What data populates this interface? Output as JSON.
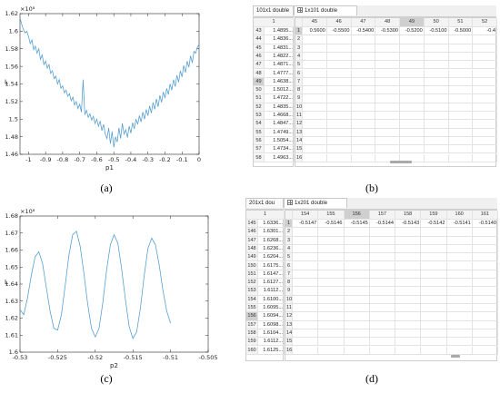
{
  "captions": {
    "a": "(a)",
    "b": "(b)",
    "c": "(c)",
    "d": "(d)"
  },
  "chart_data": [
    {
      "type": "line",
      "panel": "a",
      "xlabel": "p1",
      "ylabel": "L",
      "y_exponent": "×10⁸",
      "xlim": [
        -1.05,
        0
      ],
      "ylim": [
        1.46,
        1.62
      ],
      "xticks": [
        -1,
        -0.9,
        -0.8,
        -0.7,
        -0.6,
        -0.5,
        -0.4,
        -0.3,
        -0.2,
        -0.1,
        0
      ],
      "xtick_labels": [
        "-1",
        "-0.9",
        "-0.8",
        "-0.7",
        "-0.6",
        "-0.5",
        "-0.4",
        "-0.3",
        "-0.2",
        "-0.1",
        "0"
      ],
      "yticks": [
        1.46,
        1.48,
        1.5,
        1.52,
        1.54,
        1.56,
        1.58,
        1.6,
        1.62
      ],
      "ytick_labels": [
        "1.46",
        "1.48",
        "1.5",
        "1.52",
        "1.54",
        "1.56",
        "1.58",
        "1.6",
        "1.62"
      ],
      "grid": false,
      "color": "#5aa0cf",
      "series": [
        {
          "x": [
            -1.05,
            -1.04,
            -1.03,
            -1.02,
            -1.01,
            -1,
            -0.99,
            -0.98,
            -0.97,
            -0.96,
            -0.95,
            -0.94,
            -0.93,
            -0.92,
            -0.91,
            -0.9,
            -0.89,
            -0.88,
            -0.87,
            -0.86,
            -0.85,
            -0.84,
            -0.83,
            -0.82,
            -0.81,
            -0.8,
            -0.79,
            -0.78,
            -0.77,
            -0.76,
            -0.75,
            -0.74,
            -0.73,
            -0.72,
            -0.71,
            -0.7,
            -0.69,
            -0.68,
            -0.67,
            -0.66,
            -0.65,
            -0.64,
            -0.63,
            -0.62,
            -0.61,
            -0.6,
            -0.59,
            -0.58,
            -0.57,
            -0.56,
            -0.55,
            -0.54,
            -0.53,
            -0.52,
            -0.51,
            -0.5,
            -0.49,
            -0.48,
            -0.47,
            -0.46,
            -0.45,
            -0.44,
            -0.43,
            -0.42,
            -0.41,
            -0.4,
            -0.39,
            -0.38,
            -0.37,
            -0.36,
            -0.35,
            -0.34,
            -0.33,
            -0.32,
            -0.31,
            -0.3,
            -0.29,
            -0.28,
            -0.27,
            -0.26,
            -0.25,
            -0.24,
            -0.23,
            -0.22,
            -0.21,
            -0.2,
            -0.19,
            -0.18,
            -0.17,
            -0.16,
            -0.15,
            -0.14,
            -0.13,
            -0.12,
            -0.11,
            -0.1,
            -0.09,
            -0.08,
            -0.07,
            -0.06,
            -0.05,
            -0.04,
            -0.03,
            -0.02,
            -0.01,
            0
          ],
          "y": [
            1.615,
            1.608,
            1.602,
            1.598,
            1.6,
            1.594,
            1.586,
            1.59,
            1.579,
            1.583,
            1.575,
            1.58,
            1.568,
            1.573,
            1.562,
            1.566,
            1.558,
            1.562,
            1.552,
            1.555,
            1.546,
            1.549,
            1.54,
            1.545,
            1.535,
            1.538,
            1.53,
            1.533,
            1.526,
            1.529,
            1.521,
            1.525,
            1.516,
            1.52,
            1.512,
            1.517,
            1.508,
            1.545,
            1.505,
            1.51,
            1.502,
            1.506,
            1.499,
            1.503,
            1.495,
            1.5,
            1.492,
            1.498,
            1.487,
            1.494,
            1.483,
            1.478,
            1.49,
            1.472,
            1.486,
            1.468,
            1.48,
            1.474,
            1.49,
            1.478,
            1.495,
            1.483,
            1.488,
            1.479,
            1.492,
            1.484,
            1.496,
            1.489,
            1.5,
            1.494,
            1.504,
            1.497,
            1.508,
            1.5,
            1.511,
            1.504,
            1.515,
            1.507,
            1.519,
            1.511,
            1.523,
            1.514,
            1.527,
            1.519,
            1.531,
            1.524,
            1.535,
            1.528,
            1.54,
            1.533,
            1.545,
            1.537,
            1.55,
            1.542,
            1.555,
            1.548,
            1.561,
            1.553,
            1.566,
            1.559,
            1.572,
            1.564,
            1.577,
            1.575,
            1.582,
            1.585
          ]
        }
      ]
    },
    {
      "type": "line",
      "panel": "c",
      "xlabel": "p2",
      "ylabel": "L",
      "y_exponent": "×10⁸",
      "xlim": [
        -0.53,
        -0.505
      ],
      "ylim": [
        1.6,
        1.68
      ],
      "xticks": [
        -0.53,
        -0.525,
        -0.52,
        -0.515,
        -0.51,
        -0.505
      ],
      "xtick_labels": [
        "-0.53",
        "-0.525",
        "-0.52",
        "-0.515",
        "-0.51",
        "-0.505"
      ],
      "yticks": [
        1.6,
        1.61,
        1.62,
        1.63,
        1.64,
        1.65,
        1.66,
        1.67,
        1.68
      ],
      "ytick_labels": [
        "1.6",
        "1.61",
        "1.62",
        "1.63",
        "1.64",
        "1.65",
        "1.66",
        "1.67",
        "1.68"
      ],
      "grid": false,
      "color": "#5aa0cf",
      "series": [
        {
          "x": [
            -0.53,
            -0.5295,
            -0.529,
            -0.5285,
            -0.528,
            -0.5275,
            -0.527,
            -0.5265,
            -0.526,
            -0.5255,
            -0.525,
            -0.5245,
            -0.524,
            -0.5235,
            -0.523,
            -0.5225,
            -0.522,
            -0.5215,
            -0.521,
            -0.5205,
            -0.52,
            -0.5195,
            -0.519,
            -0.5185,
            -0.518,
            -0.5175,
            -0.517,
            -0.5165,
            -0.516,
            -0.5155,
            -0.515,
            -0.5145,
            -0.514,
            -0.5135,
            -0.513,
            -0.5125,
            -0.512,
            -0.5115,
            -0.511,
            -0.5105,
            -0.51
          ],
          "y": [
            1.625,
            1.622,
            1.632,
            1.645,
            1.656,
            1.659,
            1.652,
            1.638,
            1.624,
            1.614,
            1.613,
            1.622,
            1.639,
            1.657,
            1.669,
            1.671,
            1.662,
            1.646,
            1.628,
            1.614,
            1.609,
            1.614,
            1.629,
            1.648,
            1.663,
            1.669,
            1.664,
            1.649,
            1.631,
            1.615,
            1.608,
            1.612,
            1.626,
            1.645,
            1.661,
            1.667,
            1.663,
            1.651,
            1.636,
            1.624,
            1.617
          ]
        }
      ]
    }
  ],
  "panel_b": {
    "tab_main": "101x1 double",
    "tab_sub": "1x101 double",
    "corner_header": "1",
    "rows": [
      {
        "n": "43",
        "v": "1.4895..."
      },
      {
        "n": "44",
        "v": "1.4836..."
      },
      {
        "n": "45",
        "v": "1.4831..."
      },
      {
        "n": "46",
        "v": "1.4822..."
      },
      {
        "n": "47",
        "v": "1.4871..."
      },
      {
        "n": "48",
        "v": "1.4777..."
      },
      {
        "n": "49",
        "v": "1.4638..."
      },
      {
        "n": "50",
        "v": "1.5012..."
      },
      {
        "n": "51",
        "v": "1.4722..."
      },
      {
        "n": "52",
        "v": "1.4835..."
      },
      {
        "n": "53",
        "v": "1.4668..."
      },
      {
        "n": "54",
        "v": "1.4847..."
      },
      {
        "n": "55",
        "v": "1.4749..."
      },
      {
        "n": "56",
        "v": "1.5054..."
      },
      {
        "n": "57",
        "v": "1.4734..."
      },
      {
        "n": "58",
        "v": "1.4963..."
      }
    ],
    "col_headers": [
      "45",
      "46",
      "47",
      "48",
      "49",
      "50",
      "51",
      "52"
    ],
    "col_values": [
      "0.5600",
      "-0.5500",
      "-0.5400",
      "-0.5300",
      "-0.5200",
      "-0.5100",
      "-0.5000",
      "-0.4"
    ],
    "row_numbers": [
      "1",
      "2",
      "3",
      "4",
      "5",
      "6",
      "7",
      "8",
      "9",
      "10",
      "11",
      "12",
      "13",
      "14",
      "15",
      "16"
    ]
  },
  "panel_d": {
    "tab_main": "201x1 dou",
    "tab_sub": "1x201 double",
    "corner_header": "1",
    "rows": [
      {
        "n": "145",
        "v": "1.6336..."
      },
      {
        "n": "146",
        "v": "1.6301..."
      },
      {
        "n": "147",
        "v": "1.6268..."
      },
      {
        "n": "148",
        "v": "1.6236..."
      },
      {
        "n": "149",
        "v": "1.6204..."
      },
      {
        "n": "150",
        "v": "1.6175..."
      },
      {
        "n": "151",
        "v": "1.6147..."
      },
      {
        "n": "152",
        "v": "1.6127..."
      },
      {
        "n": "153",
        "v": "1.6112..."
      },
      {
        "n": "154",
        "v": "1.6100..."
      },
      {
        "n": "155",
        "v": "1.6095..."
      },
      {
        "n": "156",
        "v": "1.6094..."
      },
      {
        "n": "157",
        "v": "1.6098..."
      },
      {
        "n": "158",
        "v": "1.6104..."
      },
      {
        "n": "159",
        "v": "1.6112..."
      },
      {
        "n": "160",
        "v": "1.6125..."
      }
    ],
    "col_headers": [
      "154",
      "155",
      "156",
      "157",
      "158",
      "159",
      "160",
      "161"
    ],
    "col_values": [
      "-0.5147",
      "-0.5146",
      "-0.5145",
      "-0.5144",
      "-0.5143",
      "-0.5142",
      "-0.5141",
      "-0.5140"
    ],
    "row_numbers": [
      "1",
      "2",
      "3",
      "4",
      "5",
      "6",
      "7",
      "8",
      "9",
      "10",
      "11",
      "12",
      "13",
      "14",
      "15",
      "16"
    ]
  }
}
